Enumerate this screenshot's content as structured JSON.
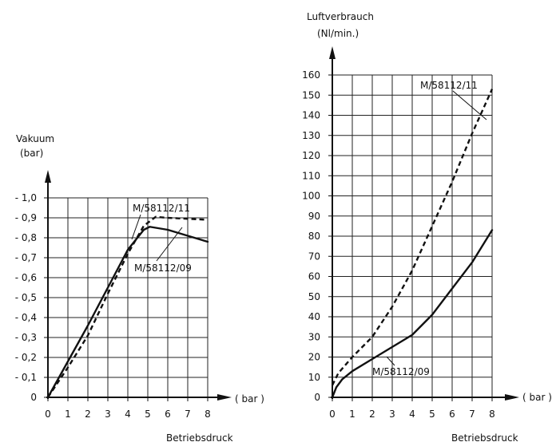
{
  "chart_data": [
    {
      "type": "line",
      "ylabel": "Vakuum",
      "yunit": "(bar)",
      "xlabel": "Betriebsdruck",
      "xunit": "( bar )",
      "xlim": [
        0,
        8
      ],
      "ylim": [
        0,
        1.0
      ],
      "xticks": [
        "0",
        "1",
        "2",
        "3",
        "4",
        "5",
        "6",
        "7",
        "8"
      ],
      "yticks": [
        "0",
        "- 0,1",
        "- 0,2",
        "- 0,3",
        "- 0,4",
        "- 0,5",
        "- 0,6",
        "- 0,7",
        "- 0,8",
        "- 0,9",
        "- 1,0"
      ],
      "grid": true,
      "series": [
        {
          "name": "M/58112/11",
          "style": "dashed",
          "x": [
            0,
            1,
            2,
            3,
            4,
            4.8,
            5.4,
            6,
            7,
            8
          ],
          "y": [
            0,
            0.15,
            0.31,
            0.52,
            0.72,
            0.86,
            0.905,
            0.9,
            0.895,
            0.89
          ]
        },
        {
          "name": "M/58112/09",
          "style": "solid",
          "x": [
            0,
            1,
            2,
            3,
            4,
            4.8,
            5.1,
            6,
            7,
            8
          ],
          "y": [
            0,
            0.18,
            0.36,
            0.55,
            0.74,
            0.84,
            0.855,
            0.84,
            0.81,
            0.78
          ]
        }
      ]
    },
    {
      "type": "line",
      "ylabel": "Luftverbrauch",
      "yunit": "(Nl/min.)",
      "xlabel": "Betriebsdruck",
      "xunit": "( bar )",
      "xlim": [
        0,
        8
      ],
      "ylim": [
        0,
        160
      ],
      "xticks": [
        "0",
        "1",
        "2",
        "3",
        "4",
        "5",
        "6",
        "7",
        "8"
      ],
      "yticks": [
        "0",
        "10",
        "20",
        "30",
        "40",
        "50",
        "60",
        "70",
        "80",
        "90",
        "100",
        "110",
        "120",
        "130",
        "140",
        "150",
        "160"
      ],
      "grid": true,
      "series": [
        {
          "name": "M/58112/11",
          "style": "dashed",
          "x": [
            0,
            0.3,
            1,
            2,
            3,
            4,
            5,
            6,
            7,
            8
          ],
          "y": [
            6,
            12,
            20,
            30,
            45,
            63,
            85,
            107,
            131,
            153
          ]
        },
        {
          "name": "M/58112/09",
          "style": "solid",
          "x": [
            0,
            0.2,
            0.5,
            1,
            2,
            3,
            4,
            5,
            6,
            7,
            8
          ],
          "y": [
            0,
            5,
            9,
            13,
            19,
            25,
            31,
            41,
            54,
            67,
            83
          ]
        }
      ]
    }
  ]
}
